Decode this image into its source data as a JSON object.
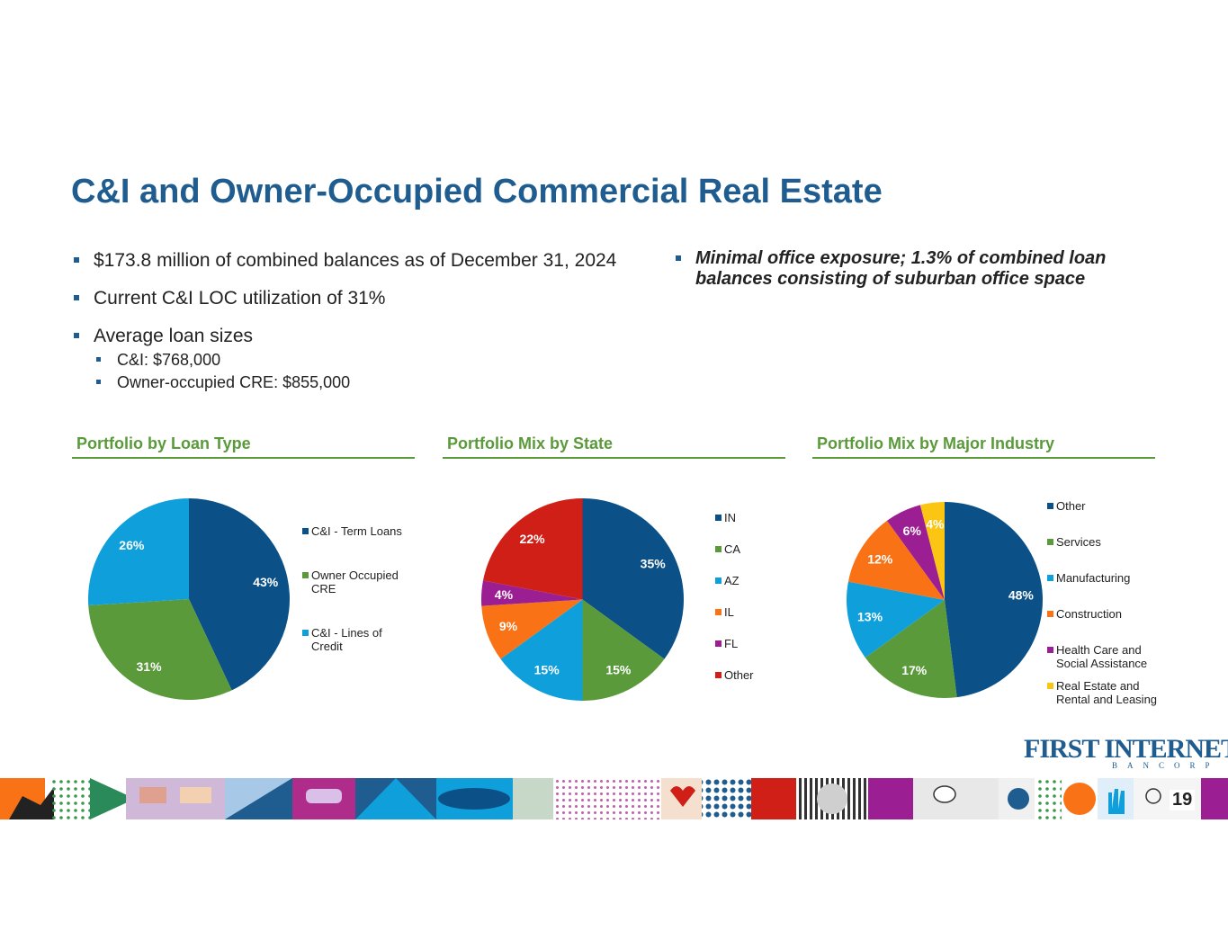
{
  "title": "C&I and Owner-Occupied Commercial Real Estate",
  "bullets_left": [
    "$173.8 million of combined balances as of December 31, 2024",
    "Current C&I LOC utilization of 31%",
    "Average loan sizes"
  ],
  "sub_bullets": [
    "C&I: $768,000",
    "Owner-occupied CRE: $855,000"
  ],
  "bullet_right": "Minimal office exposure; 1.3% of combined loan balances consisting of suburban office space",
  "logo": {
    "main": "FIRST INTERNET",
    "sub": "BANCORP"
  },
  "page_number": "19",
  "colors": {
    "title": "#1f5c8f",
    "panel_title": "#5a9a3a",
    "navy": "#0b5188",
    "green": "#5a9a3a",
    "cyan": "#0fa0dc",
    "orange": "#f97316",
    "purple": "#9b1f93",
    "red": "#d01f17",
    "yellow": "#fbc513"
  },
  "chart_data": [
    {
      "type": "pie",
      "title": "Portfolio by Loan Type",
      "categories": [
        "C&I - Term Loans",
        "Owner Occupied CRE",
        "C&I - Lines of Credit"
      ],
      "values": [
        43,
        31,
        26
      ],
      "labels": [
        "43%",
        "31%",
        "26%"
      ],
      "colors": [
        "#0b5188",
        "#5a9a3a",
        "#0fa0dc"
      ],
      "legend": "right"
    },
    {
      "type": "pie",
      "title": "Portfolio Mix by State",
      "categories": [
        "IN",
        "CA",
        "AZ",
        "IL",
        "FL",
        "Other"
      ],
      "values": [
        35,
        15,
        15,
        9,
        4,
        22
      ],
      "labels": [
        "35%",
        "15%",
        "15%",
        "9%",
        "4%",
        "22%"
      ],
      "colors": [
        "#0b5188",
        "#5a9a3a",
        "#0fa0dc",
        "#f97316",
        "#9b1f93",
        "#d01f17"
      ],
      "legend": "right"
    },
    {
      "type": "pie",
      "title": "Portfolio Mix by Major Industry",
      "categories": [
        "Other",
        "Services",
        "Manufacturing",
        "Construction",
        "Health Care and Social Assistance",
        "Real Estate and Rental and Leasing"
      ],
      "values": [
        48,
        17,
        13,
        12,
        6,
        4
      ],
      "labels": [
        "48%",
        "17%",
        "13%",
        "12%",
        "6%",
        "4%"
      ],
      "colors": [
        "#0b5188",
        "#5a9a3a",
        "#0fa0dc",
        "#f97316",
        "#9b1f93",
        "#fbc513"
      ],
      "legend": "right"
    }
  ]
}
